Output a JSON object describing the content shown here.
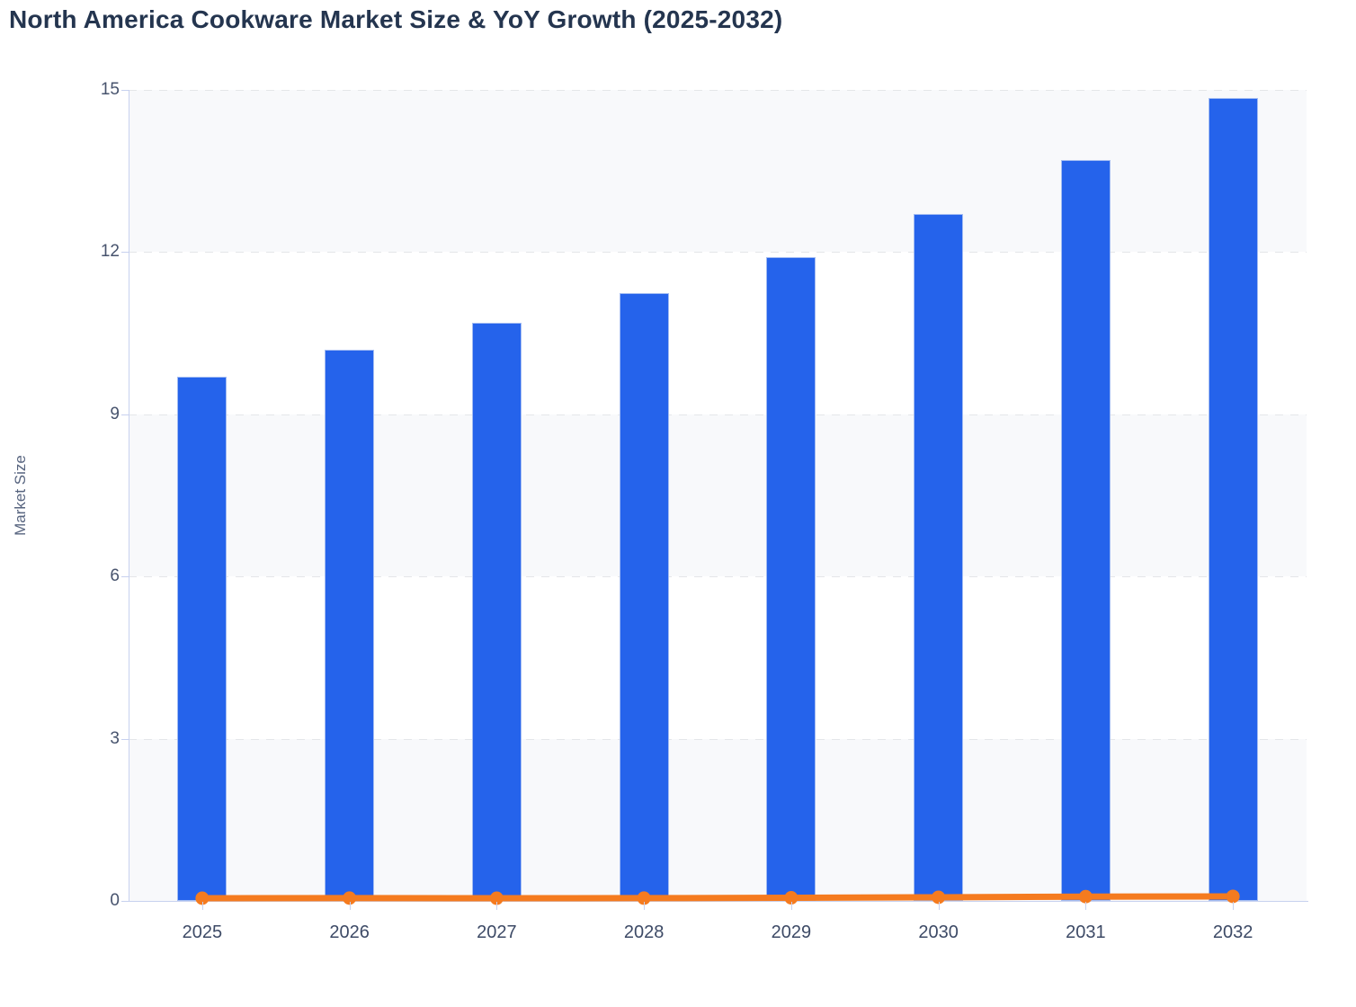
{
  "title": "North America Cookware Market Size & YoY Growth (2025-2032)",
  "colors": {
    "bar": "#2563eb",
    "bar_border": "#a3bcf2",
    "line": "#f57b1f",
    "band": "#f8f9fb",
    "band_alt": "#ffffff",
    "gridline": "#e4e6e9",
    "axis": "#c7d1ef",
    "title_text": "#24354f",
    "y_tick_text": "#47536d",
    "x_tick_text": "#3d4a66",
    "axis_title_text": "#57647f"
  },
  "chart_data": {
    "type": "bar",
    "title": "North America Cookware Market Size & YoY Growth (2025-2032)",
    "categories": [
      "2025",
      "2026",
      "2027",
      "2028",
      "2029",
      "2030",
      "2031",
      "2032"
    ],
    "series": [
      {
        "name": "Market Size",
        "type": "bar",
        "values": [
          9.7,
          10.2,
          10.7,
          11.25,
          11.9,
          12.7,
          13.7,
          14.85
        ]
      },
      {
        "name": "YoY Growth",
        "type": "line",
        "values": [
          0.05,
          0.052,
          0.049,
          0.051,
          0.058,
          0.067,
          0.079,
          0.084
        ]
      }
    ],
    "xlabel": "",
    "ylabel": "Market Size",
    "ylim": [
      0,
      15
    ],
    "yticks": [
      0,
      3,
      6,
      9,
      12,
      15
    ],
    "grid": "horizontal-dashed",
    "background_bands": "alternating horizontal, gray on 0-3 / 6-9 / 12-15",
    "legend_position": "none"
  }
}
